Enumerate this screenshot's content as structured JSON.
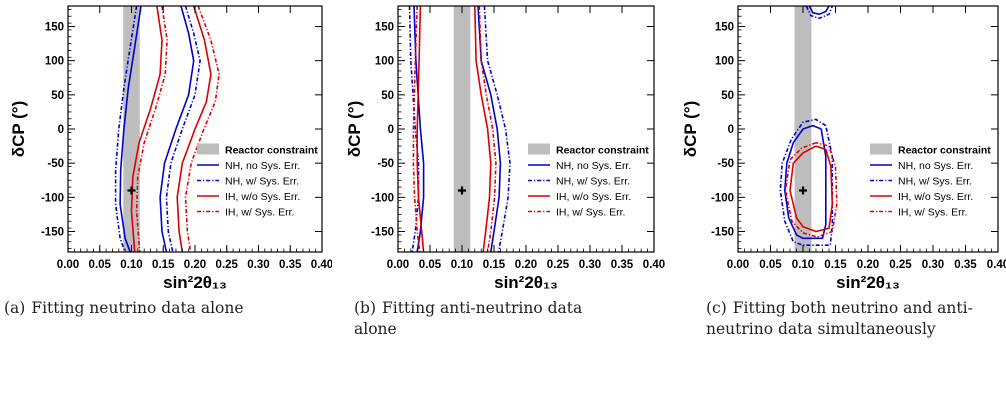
{
  "chart_data": [
    {
      "type": "line",
      "caption_label": "(a)",
      "caption_text": "Fitting neutrino data alone",
      "xlabel": "sin²2θ₁₃",
      "ylabel": "δCP (°)",
      "xlim": [
        0.0,
        0.4
      ],
      "ylim": [
        -180,
        180
      ],
      "xticks": [
        "0.00",
        "0.05",
        "0.10",
        "0.15",
        "0.20",
        "0.25",
        "0.30",
        "0.35",
        "0.40"
      ],
      "yticks": [
        "150",
        "100",
        "50",
        "0",
        "-50",
        "-100",
        "-150"
      ],
      "reactor_band": [
        0.087,
        0.113
      ],
      "best_fit": [
        0.1,
        -90
      ],
      "legend": {
        "placement": "center-right",
        "entries": [
          "Reactor constraint",
          "NH, no Sys. Err.",
          "NH, w/ Sys. Err.",
          "IH, w/o Sys. Err.",
          "IH, w/ Sys. Err."
        ]
      },
      "series": [
        {
          "style": "solid",
          "color": "#0000cc",
          "segments": [
            [
              [
                0.115,
                180
              ],
              [
                0.105,
                120
              ],
              [
                0.095,
                60
              ],
              [
                0.088,
                0
              ],
              [
                0.083,
                -60
              ],
              [
                0.082,
                -110
              ],
              [
                0.09,
                -160
              ],
              [
                0.098,
                -180
              ]
            ],
            [
              [
                0.178,
                180
              ],
              [
                0.19,
                140
              ],
              [
                0.198,
                100
              ],
              [
                0.19,
                50
              ],
              [
                0.17,
                0
              ],
              [
                0.152,
                -50
              ],
              [
                0.145,
                -100
              ],
              [
                0.148,
                -150
              ],
              [
                0.155,
                -180
              ]
            ]
          ]
        },
        {
          "style": "dashdot",
          "color": "#0000cc",
          "segments": [
            [
              [
                0.108,
                180
              ],
              [
                0.098,
                120
              ],
              [
                0.088,
                60
              ],
              [
                0.08,
                0
              ],
              [
                0.075,
                -60
              ],
              [
                0.075,
                -110
              ],
              [
                0.082,
                -160
              ],
              [
                0.09,
                -180
              ]
            ],
            [
              [
                0.185,
                180
              ],
              [
                0.198,
                140
              ],
              [
                0.208,
                100
              ],
              [
                0.2,
                50
              ],
              [
                0.18,
                0
              ],
              [
                0.162,
                -50
              ],
              [
                0.155,
                -100
              ],
              [
                0.158,
                -150
              ],
              [
                0.165,
                -180
              ]
            ]
          ]
        },
        {
          "style": "solid",
          "color": "#dd0000",
          "segments": [
            [
              [
                0.14,
                180
              ],
              [
                0.148,
                130
              ],
              [
                0.145,
                80
              ],
              [
                0.13,
                30
              ],
              [
                0.112,
                -20
              ],
              [
                0.102,
                -70
              ],
              [
                0.1,
                -120
              ],
              [
                0.105,
                -180
              ]
            ],
            [
              [
                0.198,
                180
              ],
              [
                0.215,
                130
              ],
              [
                0.225,
                80
              ],
              [
                0.218,
                40
              ],
              [
                0.2,
                0
              ],
              [
                0.18,
                -50
              ],
              [
                0.172,
                -100
              ],
              [
                0.175,
                -150
              ],
              [
                0.18,
                -180
              ]
            ]
          ]
        },
        {
          "style": "dashdot",
          "color": "#dd0000",
          "segments": [
            [
              [
                0.148,
                180
              ],
              [
                0.156,
                130
              ],
              [
                0.153,
                80
              ],
              [
                0.138,
                30
              ],
              [
                0.12,
                -20
              ],
              [
                0.11,
                -70
              ],
              [
                0.108,
                -120
              ],
              [
                0.113,
                -180
              ]
            ],
            [
              [
                0.205,
                180
              ],
              [
                0.225,
                130
              ],
              [
                0.238,
                80
              ],
              [
                0.232,
                40
              ],
              [
                0.214,
                0
              ],
              [
                0.194,
                -50
              ],
              [
                0.185,
                -100
              ],
              [
                0.188,
                -150
              ],
              [
                0.193,
                -180
              ]
            ]
          ]
        }
      ]
    },
    {
      "type": "line",
      "caption_label": "(b)",
      "caption_text": "Fitting anti-neutrino data alone",
      "xlabel": "sin²2θ₁₃",
      "ylabel": "δCP (°)",
      "xlim": [
        0.0,
        0.4
      ],
      "ylim": [
        -180,
        180
      ],
      "xticks": [
        "0.00",
        "0.05",
        "0.10",
        "0.15",
        "0.20",
        "0.25",
        "0.30",
        "0.35",
        "0.40"
      ],
      "yticks": [
        "150",
        "100",
        "50",
        "0",
        "-50",
        "-100",
        "-150"
      ],
      "reactor_band": [
        0.087,
        0.113
      ],
      "best_fit": [
        0.1,
        -90
      ],
      "legend": {
        "placement": "center-right",
        "entries": [
          "Reactor constraint",
          "NH, no Sys. Err.",
          "NH, w/ Sys. Err.",
          "IH, w/o Sys. Err.",
          "IH, w/ Sys. Err."
        ]
      },
      "series": [
        {
          "style": "solid",
          "color": "#0000cc",
          "segments": [
            [
              [
                0.025,
                180
              ],
              [
                0.028,
                100
              ],
              [
                0.035,
                0
              ],
              [
                0.04,
                -50
              ],
              [
                0.04,
                -100
              ],
              [
                0.035,
                -150
              ],
              [
                0.03,
                -180
              ]
            ],
            [
              [
                0.125,
                180
              ],
              [
                0.13,
                100
              ],
              [
                0.145,
                50
              ],
              [
                0.155,
                0
              ],
              [
                0.16,
                -50
              ],
              [
                0.158,
                -100
              ],
              [
                0.15,
                -150
              ],
              [
                0.145,
                -180
              ]
            ]
          ]
        },
        {
          "style": "dashdot",
          "color": "#0000cc",
          "segments": [
            [
              [
                0.018,
                180
              ],
              [
                0.02,
                100
              ],
              [
                0.027,
                0
              ],
              [
                0.032,
                -50
              ],
              [
                0.032,
                -100
              ],
              [
                0.027,
                -150
              ],
              [
                0.022,
                -180
              ]
            ],
            [
              [
                0.135,
                180
              ],
              [
                0.14,
                100
              ],
              [
                0.155,
                50
              ],
              [
                0.168,
                0
              ],
              [
                0.175,
                -50
              ],
              [
                0.172,
                -100
              ],
              [
                0.163,
                -150
              ],
              [
                0.157,
                -180
              ]
            ]
          ]
        },
        {
          "style": "solid",
          "color": "#dd0000",
          "segments": [
            [
              [
                0.035,
                180
              ],
              [
                0.033,
                100
              ],
              [
                0.03,
                0
              ],
              [
                0.03,
                -50
              ],
              [
                0.032,
                -100
              ],
              [
                0.037,
                -150
              ],
              [
                0.04,
                -180
              ]
            ],
            [
              [
                0.12,
                180
              ],
              [
                0.122,
                100
              ],
              [
                0.13,
                50
              ],
              [
                0.14,
                0
              ],
              [
                0.145,
                -50
              ],
              [
                0.143,
                -100
              ],
              [
                0.137,
                -150
              ],
              [
                0.133,
                -180
              ]
            ]
          ]
        },
        {
          "style": "dashdot",
          "color": "#dd0000",
          "segments": [
            [
              [
                0.03,
                180
              ],
              [
                0.027,
                100
              ],
              [
                0.024,
                0
              ],
              [
                0.024,
                -50
              ],
              [
                0.026,
                -100
              ],
              [
                0.03,
                -150
              ],
              [
                0.034,
                -180
              ]
            ],
            [
              [
                0.127,
                180
              ],
              [
                0.13,
                100
              ],
              [
                0.138,
                50
              ],
              [
                0.148,
                0
              ],
              [
                0.153,
                -50
              ],
              [
                0.151,
                -100
              ],
              [
                0.145,
                -150
              ],
              [
                0.14,
                -180
              ]
            ]
          ]
        }
      ]
    },
    {
      "type": "line",
      "caption_label": "(c)",
      "caption_text": "Fitting both neutrino and anti-neutrino data simultaneously",
      "xlabel": "sin²2θ₁₃",
      "ylabel": "δCP (°)",
      "xlim": [
        0.0,
        0.4
      ],
      "ylim": [
        -180,
        180
      ],
      "xticks": [
        "0.00",
        "0.05",
        "0.10",
        "0.15",
        "0.20",
        "0.25",
        "0.30",
        "0.35",
        "0.40"
      ],
      "yticks": [
        "150",
        "100",
        "50",
        "0",
        "-50",
        "-100",
        "-150"
      ],
      "reactor_band": [
        0.087,
        0.113
      ],
      "best_fit": [
        0.1,
        -90
      ],
      "legend": {
        "placement": "center-right",
        "entries": [
          "Reactor constraint",
          "NH, no Sys. Err.",
          "NH, w/ Sys. Err.",
          "IH, w/o Sys. Err.",
          "IH, w/ Sys. Err."
        ]
      },
      "series": [
        {
          "style": "solid",
          "color": "#0000cc",
          "segments": [
            [
              [
                0.128,
                0
              ],
              [
                0.115,
                5
              ],
              [
                0.1,
                0
              ],
              [
                0.085,
                -20
              ],
              [
                0.075,
                -50
              ],
              [
                0.072,
                -90
              ],
              [
                0.078,
                -130
              ],
              [
                0.09,
                -155
              ],
              [
                0.1,
                -160
              ],
              [
                0.13,
                -160
              ],
              [
                0.135,
                -140
              ],
              [
                0.135,
                -40
              ],
              [
                0.128,
                0
              ]
            ],
            [
              [
                0.11,
                180
              ],
              [
                0.115,
                170
              ],
              [
                0.125,
                168
              ],
              [
                0.135,
                172
              ],
              [
                0.14,
                180
              ]
            ]
          ]
        },
        {
          "style": "dashdot",
          "color": "#0000cc",
          "segments": [
            [
              [
                0.135,
                5
              ],
              [
                0.12,
                14
              ],
              [
                0.1,
                10
              ],
              [
                0.082,
                -15
              ],
              [
                0.068,
                -50
              ],
              [
                0.065,
                -90
              ],
              [
                0.072,
                -135
              ],
              [
                0.085,
                -165
              ],
              [
                0.1,
                -170
              ],
              [
                0.142,
                -170
              ],
              [
                0.145,
                -140
              ],
              [
                0.145,
                -40
              ],
              [
                0.135,
                5
              ]
            ],
            [
              [
                0.105,
                180
              ],
              [
                0.112,
                166
              ],
              [
                0.125,
                162
              ],
              [
                0.14,
                168
              ],
              [
                0.145,
                180
              ]
            ]
          ]
        },
        {
          "style": "solid",
          "color": "#dd0000",
          "segments": [
            [
              [
                0.12,
                -25
              ],
              [
                0.1,
                -35
              ],
              [
                0.085,
                -50
              ],
              [
                0.08,
                -90
              ],
              [
                0.09,
                -130
              ],
              [
                0.1,
                -143
              ],
              [
                0.12,
                -150
              ],
              [
                0.14,
                -145
              ],
              [
                0.145,
                -110
              ],
              [
                0.143,
                -55
              ],
              [
                0.135,
                -30
              ],
              [
                0.12,
                -25
              ]
            ]
          ]
        },
        {
          "style": "dashdot",
          "color": "#dd0000",
          "segments": [
            [
              [
                0.12,
                -20
              ],
              [
                0.098,
                -28
              ],
              [
                0.08,
                -45
              ],
              [
                0.073,
                -90
              ],
              [
                0.083,
                -135
              ],
              [
                0.1,
                -152
              ],
              [
                0.122,
                -158
              ],
              [
                0.145,
                -150
              ],
              [
                0.152,
                -110
              ],
              [
                0.15,
                -55
              ],
              [
                0.14,
                -25
              ],
              [
                0.12,
                -20
              ]
            ]
          ]
        }
      ]
    }
  ]
}
